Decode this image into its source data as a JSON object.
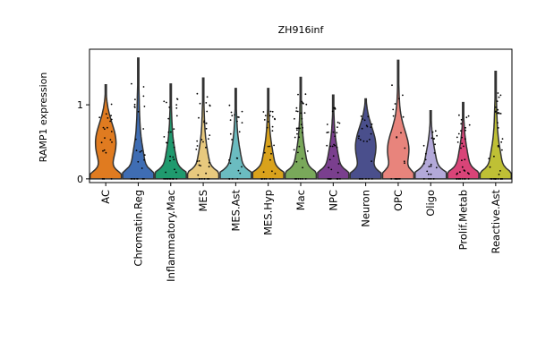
{
  "chart_data": {
    "type": "violin",
    "title": "ZH916inf",
    "ylabel": "RAMP1 expression",
    "xlabel": "",
    "ylim": [
      -0.05,
      1.75
    ],
    "yticks": [
      0,
      1
    ],
    "grid": false,
    "legend": "none",
    "categories": [
      "AC",
      "Chromatin.Reg",
      "Inflammatory.Mac",
      "MES",
      "MES.Ast",
      "MES.Hyp",
      "Mac",
      "NPC",
      "Neuron",
      "OPC",
      "Oligo",
      "Prolif.Metab",
      "Reactive.Ast"
    ],
    "colors": [
      "#e07b20",
      "#3f6db3",
      "#1f9a6e",
      "#e8c97e",
      "#6bbcc0",
      "#d9a21c",
      "#79a85a",
      "#7a3f8e",
      "#4a4f8c",
      "#e8847c",
      "#b3a9d9",
      "#d94478",
      "#bfc035"
    ],
    "series": [
      {
        "category": "AC",
        "max": 1.27,
        "bulk": 0.5
      },
      {
        "category": "Chromatin.Reg",
        "max": 1.63,
        "bulk": 0.15
      },
      {
        "category": "Inflammatory.Mac",
        "max": 1.28,
        "bulk": 0.1
      },
      {
        "category": "MES",
        "max": 1.36,
        "bulk": 0.1
      },
      {
        "category": "MES.Ast",
        "max": 1.22,
        "bulk": 0.12
      },
      {
        "category": "MES.Hyp",
        "max": 1.22,
        "bulk": 0.12
      },
      {
        "category": "Mac",
        "max": 1.37,
        "bulk": 0.1
      },
      {
        "category": "NPC",
        "max": 1.13,
        "bulk": 0.12
      },
      {
        "category": "Neuron",
        "max": 1.08,
        "bulk": 0.45
      },
      {
        "category": "OPC",
        "max": 1.6,
        "bulk": 0.4
      },
      {
        "category": "Oligo",
        "max": 0.92,
        "bulk": 0.12
      },
      {
        "category": "Prolif.Metab",
        "max": 1.03,
        "bulk": 0.1
      },
      {
        "category": "Reactive.Ast",
        "max": 1.45,
        "bulk": 0.12
      }
    ]
  }
}
